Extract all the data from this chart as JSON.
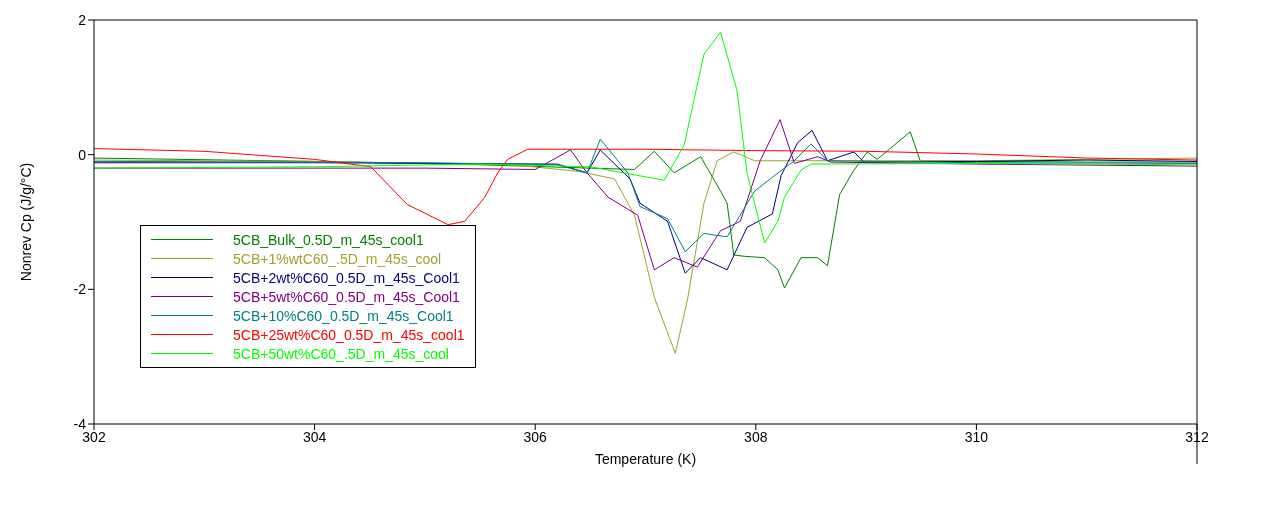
{
  "chart_data": {
    "type": "line",
    "xlabel": "Temperature (K)",
    "ylabel": "Nonrev Cp (J/g/°C)",
    "xlim": [
      302,
      312
    ],
    "xticks": [
      302,
      304,
      306,
      308,
      310,
      312
    ],
    "ylim": [
      -4,
      2
    ],
    "yticks": [
      -4,
      -2,
      0,
      2
    ],
    "grid": false,
    "legend": "bottom left",
    "marker": "none",
    "line_style": "solid",
    "series": [
      {
        "name": "5CB_Bulk_0.5D_m_45s_cool1",
        "color": "#008000",
        "x": [
          302,
          304,
          305.5,
          306.5,
          306.9,
          307.08,
          307.26,
          307.5,
          307.68,
          307.74,
          307.8,
          307.9,
          308.08,
          308.2,
          308.26,
          308.41,
          308.56,
          308.65,
          308.76,
          308.89,
          309.01,
          309.1,
          309.4,
          309.49,
          310,
          311,
          312
        ],
        "values": [
          -0.05,
          -0.1,
          -0.15,
          -0.2,
          -0.22,
          0.05,
          -0.27,
          -0.03,
          -0.54,
          -0.72,
          -1.49,
          -1.51,
          -1.53,
          -1.71,
          -1.98,
          -1.53,
          -1.53,
          -1.65,
          -0.59,
          -0.23,
          0.04,
          -0.07,
          0.34,
          -0.09,
          -0.1,
          -0.11,
          -0.11
        ]
      },
      {
        "name": "5CB+1%wtC60_.5D_m_45s_cool",
        "color": "#a0a030",
        "x": [
          302,
          304,
          305.8,
          306.4,
          306.72,
          306.9,
          307.08,
          307.27,
          307.38,
          307.53,
          307.65,
          307.8,
          307.99,
          309,
          310,
          311,
          312
        ],
        "values": [
          -0.08,
          -0.1,
          -0.15,
          -0.25,
          -0.36,
          -0.9,
          -2.12,
          -2.95,
          -2.16,
          -0.72,
          -0.09,
          0.04,
          -0.09,
          -0.09,
          -0.09,
          -0.07,
          -0.05
        ]
      },
      {
        "name": "5CB+2wt%C60_0.5D_m_45s_Cool1",
        "color": "#000080",
        "x": [
          302,
          304,
          306.2,
          306.47,
          306.59,
          306.86,
          306.95,
          307.2,
          307.36,
          307.5,
          307.74,
          307.92,
          308.15,
          308.23,
          308.38,
          308.51,
          308.65,
          308.89,
          308.98,
          310,
          311,
          312
        ],
        "values": [
          -0.12,
          -0.12,
          -0.14,
          -0.27,
          0.07,
          -0.36,
          -0.72,
          -0.99,
          -1.76,
          -1.53,
          -1.71,
          -1.08,
          -0.88,
          -0.31,
          0.18,
          0.36,
          -0.09,
          0.04,
          -0.11,
          -0.1,
          -0.08,
          -0.1
        ]
      },
      {
        "name": "5CB+5wt%C60_0.5D_m_45s_Cool1",
        "color": "#800080",
        "x": [
          302,
          304,
          305,
          306,
          306.32,
          306.47,
          306.66,
          306.93,
          307.08,
          307.26,
          307.47,
          307.68,
          307.86,
          308.04,
          308.22,
          308.35,
          308.56,
          308.68,
          310,
          312
        ],
        "values": [
          -0.2,
          -0.2,
          -0.2,
          -0.22,
          0.07,
          -0.27,
          -0.63,
          -0.9,
          -1.71,
          -1.53,
          -1.67,
          -1.13,
          -0.99,
          -0.09,
          0.52,
          -0.13,
          -0.03,
          -0.11,
          -0.14,
          -0.17
        ]
      },
      {
        "name": "5CB+10%C60_0.5D_m_45s_Cool1",
        "color": "#008080",
        "x": [
          302,
          304,
          305,
          306.2,
          306.47,
          306.59,
          306.84,
          306.95,
          307.2,
          307.36,
          307.53,
          307.74,
          307.99,
          308.17,
          308.35,
          308.5,
          308.65,
          310,
          312
        ],
        "values": [
          -0.1,
          -0.11,
          -0.12,
          -0.15,
          -0.27,
          0.23,
          -0.27,
          -0.77,
          -0.95,
          -1.44,
          -1.17,
          -1.22,
          -0.54,
          -0.31,
          -0.09,
          0.16,
          -0.09,
          -0.12,
          -0.13
        ]
      },
      {
        "name": "5CB+25wt%C60_0.5D_m_45s_cool1",
        "color": "#ff0000",
        "x": [
          302,
          303,
          304,
          304.51,
          304.84,
          305.21,
          305.36,
          305.54,
          305.66,
          305.75,
          305.93,
          307,
          308,
          309,
          310,
          311,
          312
        ],
        "values": [
          0.09,
          0.05,
          -0.07,
          -0.18,
          -0.74,
          -1.04,
          -0.99,
          -0.64,
          -0.27,
          -0.07,
          0.08,
          0.08,
          0.06,
          0.05,
          0.01,
          -0.05,
          -0.08
        ]
      },
      {
        "name": "5CB+50wt%C60_.5D_m_45s_cool",
        "color": "#00ff00",
        "x": [
          302,
          304,
          305.5,
          306.5,
          307.17,
          307.35,
          307.53,
          307.68,
          307.83,
          307.92,
          308.08,
          308.2,
          308.26,
          308.41,
          308.5,
          310,
          312
        ],
        "values": [
          -0.2,
          -0.18,
          -0.14,
          -0.18,
          -0.38,
          0.14,
          1.49,
          1.82,
          0.95,
          -0.27,
          -1.31,
          -0.99,
          -0.63,
          -0.23,
          -0.14,
          -0.13,
          -0.15
        ]
      }
    ]
  }
}
